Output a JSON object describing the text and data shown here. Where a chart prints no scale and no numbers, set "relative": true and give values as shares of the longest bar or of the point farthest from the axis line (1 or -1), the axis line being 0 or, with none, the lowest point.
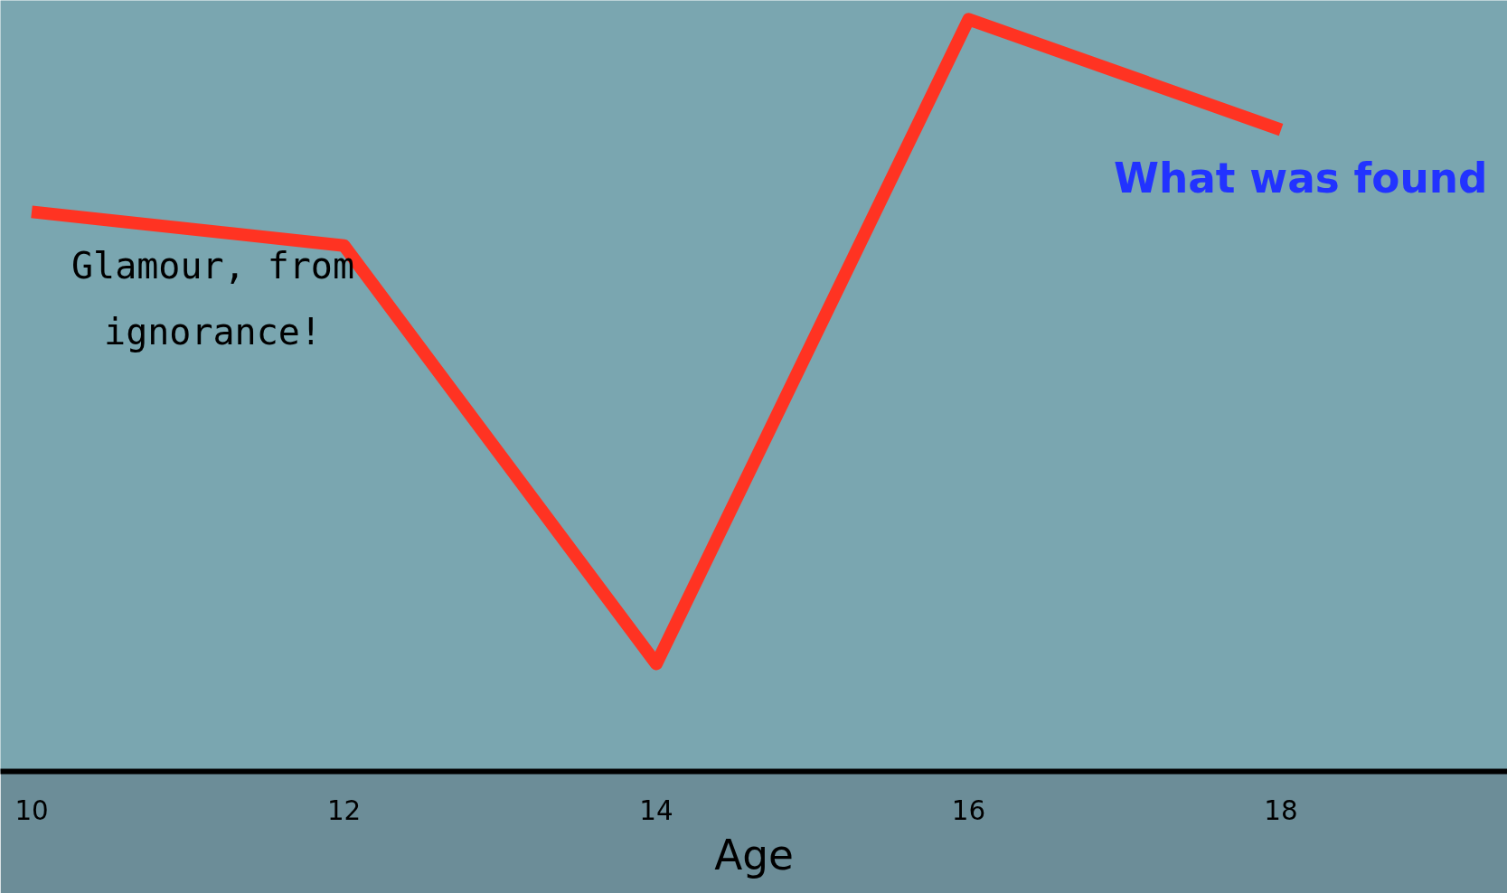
{
  "chart_data": {
    "type": "line",
    "xlabel": "Age",
    "x": [
      10,
      12,
      14,
      16,
      18
    ],
    "series": [
      {
        "name": "What was found",
        "color": "#ff3322",
        "values": [
          0.744,
          0.699,
          0.143,
          1,
          0.853
        ]
      }
    ],
    "relative": true,
    "xlim": [
      9.8,
      19.45
    ],
    "xticks": [
      10,
      12,
      14,
      16,
      18
    ],
    "annotations": [
      "Glamour, from ignorance!"
    ],
    "grid": false,
    "marker": "none",
    "line_style": "solid"
  }
}
